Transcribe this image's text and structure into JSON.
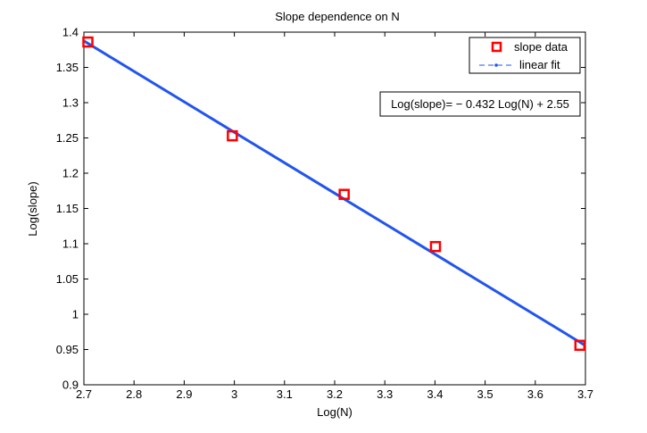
{
  "chart_data": {
    "type": "scatter",
    "title": "Slope dependence on N",
    "xlabel": "Log(N)",
    "ylabel": "Log(slope)",
    "xlim": [
      2.7,
      3.7
    ],
    "ylim": [
      0.9,
      1.4
    ],
    "xticks": [
      "2.7",
      "2.8",
      "2.9",
      "3",
      "3.1",
      "3.2",
      "3.3",
      "3.4",
      "3.5",
      "3.6",
      "3.7"
    ],
    "yticks": [
      "0.9",
      "0.95",
      "1",
      "1.05",
      "1.1",
      "1.15",
      "1.2",
      "1.25",
      "1.3",
      "1.35",
      "1.4"
    ],
    "grid": false,
    "legend_position": "top-right",
    "series": [
      {
        "name": "slope data",
        "kind": "markers",
        "marker": "square",
        "color": "#ff0000",
        "x": [
          2.708,
          2.996,
          3.219,
          3.401,
          3.689
        ],
        "y": [
          1.386,
          1.253,
          1.17,
          1.096,
          0.956
        ]
      },
      {
        "name": "linear fit",
        "kind": "line",
        "color": "#2255ee",
        "x": [
          2.7,
          3.7
        ],
        "y": [
          1.3876,
          0.9556
        ]
      }
    ],
    "annotation": "Log(slope)= − 0.432 Log(N) + 2.55"
  }
}
